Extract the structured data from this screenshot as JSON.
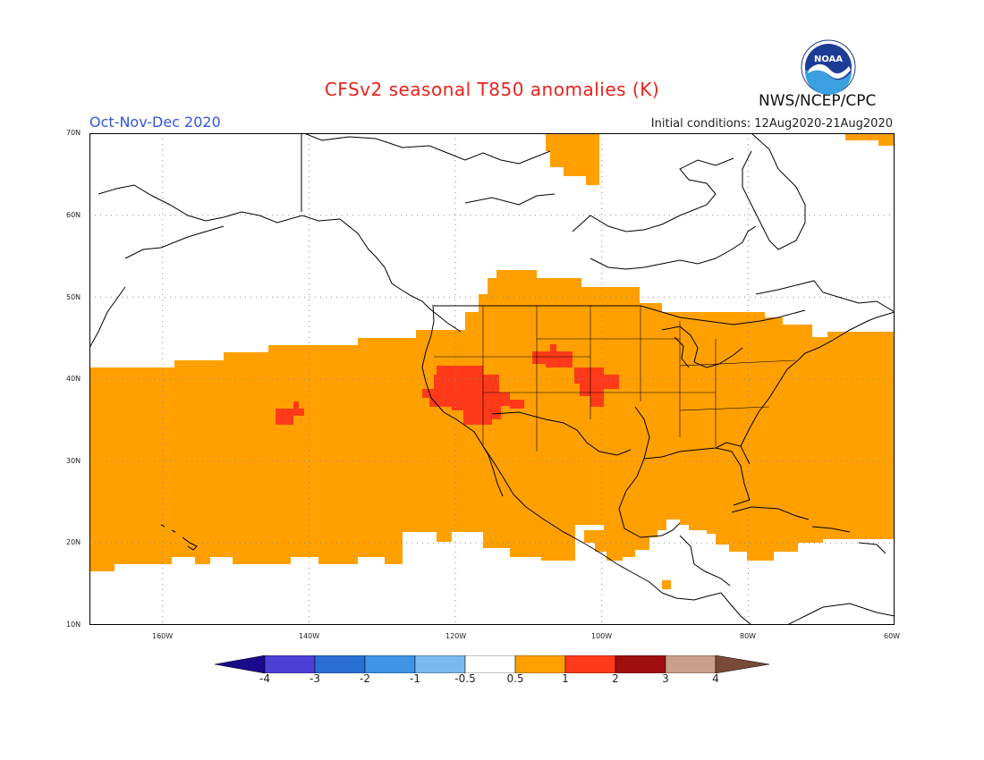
{
  "title": "CFSv2 seasonal T850 anomalies (K)",
  "period": "Oct-Nov-Dec 2020",
  "initial_conditions": "Initial conditions: 12Aug2020-21Aug2020",
  "agency": "NWS/NCEP/CPC",
  "logo_text": "NOAA",
  "colors": {
    "title": "#e8221c",
    "period": "#3355dd",
    "anomaly_05_1": "#ffa000",
    "anomaly_1_2": "#ff3a1a"
  },
  "map": {
    "lat_range": [
      10,
      70
    ],
    "lon_range": [
      -170,
      -60
    ],
    "lat_labels": [
      "70N",
      "60N",
      "50N",
      "40N",
      "30N",
      "20N",
      "10N"
    ],
    "lon_labels": [
      "160W",
      "140W",
      "120W",
      "100W",
      "80W",
      "60W"
    ]
  },
  "colorbar": {
    "labels": [
      "-4",
      "-3",
      "-2",
      "-1",
      "-0.5",
      "0.5",
      "1",
      "2",
      "3",
      "4"
    ],
    "colors": [
      "#1a0a8c",
      "#4b3fd6",
      "#2a6fd4",
      "#3f94e6",
      "#7ab8f0",
      "#ffffff",
      "#ffa000",
      "#ff3a1a",
      "#a00e0e",
      "#c8a08c",
      "#7a4a38"
    ]
  }
}
